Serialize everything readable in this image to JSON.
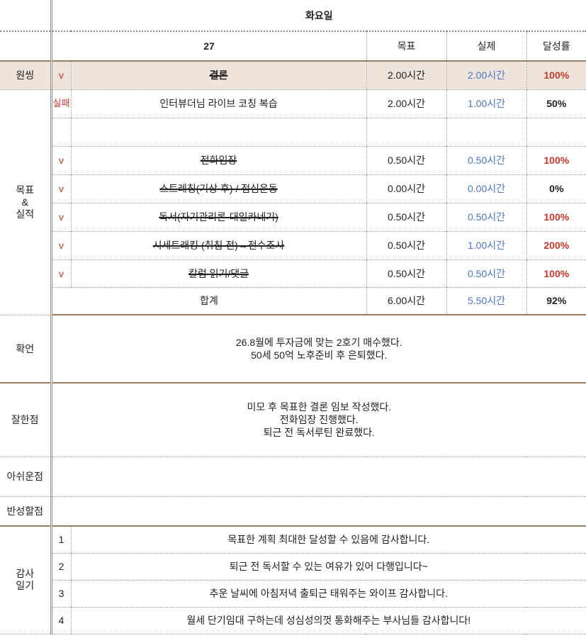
{
  "header": {
    "day": "화요일",
    "date": "27",
    "col_goal": "목표",
    "col_actual": "실제",
    "col_rate": "달성률"
  },
  "one_thing": {
    "label": "원씽",
    "check": "v",
    "task": "결론",
    "goal": "2.00시간",
    "actual": "2.00시간",
    "rate": "100%"
  },
  "goals_label": [
    "목표",
    "&",
    "실적"
  ],
  "tasks": [
    {
      "mark": "실패",
      "task": "인터뷰더님 라이브 코칭 복습",
      "goal": "2.00시간",
      "actual": "1.00시간",
      "rate": "50%",
      "struck": false,
      "rate_color": "black"
    },
    {
      "mark": "",
      "task": "",
      "goal": "",
      "actual": "",
      "rate": "",
      "struck": false,
      "rate_color": "black"
    },
    {
      "mark": "v",
      "task": "전화임장",
      "goal": "0.50시간",
      "actual": "0.50시간",
      "rate": "100%",
      "struck": true,
      "rate_color": "red"
    },
    {
      "mark": "v",
      "task": "스트레칭(기상 후) / 점심운동",
      "goal": "0.00시간",
      "actual": "0.00시간",
      "rate": "0%",
      "struck": true,
      "rate_color": "black"
    },
    {
      "mark": "v",
      "task": "독서(자기관리론-대일카네기)",
      "goal": "0.50시간",
      "actual": "0.50시간",
      "rate": "100%",
      "struck": true,
      "rate_color": "red"
    },
    {
      "mark": "v",
      "task": "시세트래킹 (취침 전)→전수조사",
      "goal": "0.50시간",
      "actual": "1.00시간",
      "rate": "200%",
      "struck": true,
      "rate_color": "red"
    },
    {
      "mark": "v",
      "task": "칼럼 읽기/댓글",
      "goal": "0.50시간",
      "actual": "0.50시간",
      "rate": "100%",
      "struck": true,
      "rate_color": "red"
    }
  ],
  "total": {
    "label": "합계",
    "goal": "6.00시간",
    "actual": "5.50시간",
    "rate": "92%"
  },
  "affirmation": {
    "label": "확언",
    "lines": [
      "26.8월에 투자금에 맞는 2호기 매수했다.",
      "50세 50억 노후준비 후 은퇴했다."
    ]
  },
  "well_done": {
    "label": "잘한점",
    "lines": [
      "미모 후 목표한 결론 임보 작성했다.",
      "전화임장 진행했다.",
      "퇴근 전 독서루틴 완료했다."
    ]
  },
  "regret": {
    "label": "아쉬운점",
    "text": ""
  },
  "reflect": {
    "label": "반성할점",
    "text": ""
  },
  "gratitude": {
    "label": [
      "감사",
      "일기"
    ],
    "items": [
      {
        "num": "1",
        "text": "목표한 계획 최대한 달성할 수 있음에 감사합니다."
      },
      {
        "num": "2",
        "text": "퇴근 전 독서할 수 있는 여유가 있어 다행입니다~"
      },
      {
        "num": "3",
        "text": "추운 날씨에 아침저녁 출퇴근 태워주는 와이프 감사합니다."
      },
      {
        "num": "4",
        "text": "월세 단기임대 구하는데 성심성의껏 통화해주는 부사님들 감사합니다!"
      }
    ]
  },
  "colors": {
    "accent_red": "#c0392b",
    "actual_blue": "#4a78c2",
    "highlight_row": "#efe4dc",
    "section_border": "#9b7b63"
  }
}
